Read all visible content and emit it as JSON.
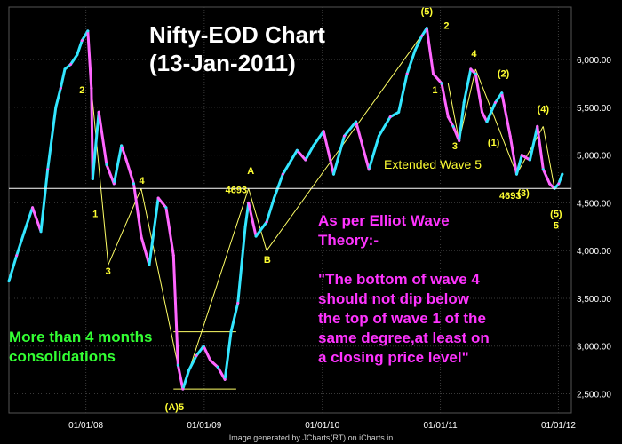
{
  "chart_data": {
    "type": "line",
    "title": "Nifty-EOD Chart",
    "subtitle": "(13-Jan-2011)",
    "ylim": [
      2300,
      6550
    ],
    "y_ticks": [
      "6,000.00",
      "5,500.00",
      "5,000.00",
      "4,500.00",
      "4,000.00",
      "3,500.00",
      "3,000.00",
      "2,500.00"
    ],
    "y_tick_values": [
      6000,
      5500,
      5000,
      4500,
      4000,
      3500,
      3000,
      2500
    ],
    "x_ticks": [
      "01/01/08",
      "01/01/09",
      "01/01/10",
      "01/01/11",
      "01/01/12"
    ],
    "x_tick_dates": [
      "2008-01-01",
      "2009-01-01",
      "2010-01-01",
      "2011-01-01",
      "2012-01-01"
    ],
    "xlim": [
      "2007-05-08",
      "2012-02-10"
    ],
    "series": [
      {
        "x": [
          "2007-05-08",
          "2007-06-01",
          "2007-06-25",
          "2007-07-20",
          "2007-08-15",
          "2007-09-05",
          "2007-09-30",
          "2007-10-15",
          "2007-10-28",
          "2007-11-15",
          "2007-12-05",
          "2007-12-20",
          "2008-01-07",
          "2008-01-18",
          "2008-01-22",
          "2008-02-10",
          "2008-03-05",
          "2008-03-28",
          "2008-04-20",
          "2008-05-05",
          "2008-05-28",
          "2008-06-20",
          "2008-07-15",
          "2008-08-12",
          "2008-09-05",
          "2008-09-28",
          "2008-10-12",
          "2008-10-27",
          "2008-11-15",
          "2008-12-08",
          "2008-12-30",
          "2009-01-20",
          "2009-02-12",
          "2009-03-06",
          "2009-03-25",
          "2009-04-15",
          "2009-05-08",
          "2009-05-18",
          "2009-06-10",
          "2009-07-13",
          "2009-08-05",
          "2009-09-01",
          "2009-10-15",
          "2009-11-10",
          "2009-12-05",
          "2010-01-05",
          "2010-02-05",
          "2010-03-10",
          "2010-04-15",
          "2010-05-25",
          "2010-06-25",
          "2010-07-30",
          "2010-08-25",
          "2010-09-20",
          "2010-10-15",
          "2010-11-05",
          "2010-11-20",
          "2010-12-10",
          "2011-01-05",
          "2011-01-25",
          "2011-02-10",
          "2011-02-28",
          "2011-03-15",
          "2011-04-05",
          "2011-04-20",
          "2011-05-10",
          "2011-05-25",
          "2011-06-20",
          "2011-07-10",
          "2011-08-05",
          "2011-08-25",
          "2011-09-10",
          "2011-10-05",
          "2011-10-28",
          "2011-11-15",
          "2011-12-05",
          "2011-12-20",
          "2012-01-02",
          "2012-01-13"
        ],
        "values": [
          3680,
          3950,
          4200,
          4450,
          4200,
          4850,
          5500,
          5700,
          5900,
          5950,
          6050,
          6200,
          6300,
          5700,
          4750,
          5450,
          4900,
          4700,
          5100,
          4950,
          4700,
          4150,
          3850,
          4550,
          4450,
          3950,
          2800,
          2550,
          2750,
          2900,
          3000,
          2850,
          2780,
          2650,
          3150,
          3450,
          4250,
          4500,
          4150,
          4300,
          4550,
          4800,
          5050,
          4950,
          5100,
          5250,
          4800,
          5200,
          5350,
          4850,
          5200,
          5400,
          5450,
          5850,
          6100,
          6250,
          6330,
          5850,
          5750,
          5400,
          5300,
          5150,
          5550,
          5900,
          5850,
          5450,
          5350,
          5550,
          5650,
          5200,
          4800,
          5000,
          4950,
          5300,
          4850,
          4700,
          4650,
          4700,
          4800
        ]
      }
    ],
    "reference_lines": [
      {
        "label": "Extended Wave 5",
        "y": 4650,
        "kind": "horizontal"
      }
    ],
    "wave_labels": [
      {
        "text": "2",
        "x": "2007-12-20",
        "y": 5650
      },
      {
        "text": "1",
        "x": "2008-01-30",
        "y": 4350
      },
      {
        "text": "4",
        "x": "2008-06-22",
        "y": 4700
      },
      {
        "text": "3",
        "x": "2008-03-10",
        "y": 3750
      },
      {
        "text": "A",
        "x": "2009-05-25",
        "y": 4800
      },
      {
        "text": "4693",
        "x": "2009-04-10",
        "y": 4600
      },
      {
        "text": "B",
        "x": "2009-07-15",
        "y": 3870
      },
      {
        "text": "(5)",
        "x": "2010-11-20",
        "y": 6470
      },
      {
        "text": "2",
        "x": "2011-01-20",
        "y": 6320
      },
      {
        "text": "1",
        "x": "2010-12-15",
        "y": 5650
      },
      {
        "text": "3",
        "x": "2011-02-15",
        "y": 5060
      },
      {
        "text": "4",
        "x": "2011-04-15",
        "y": 6030
      },
      {
        "text": "(2)",
        "x": "2011-07-15",
        "y": 5820
      },
      {
        "text": "(1)",
        "x": "2011-06-15",
        "y": 5100
      },
      {
        "text": "(4)",
        "x": "2011-11-15",
        "y": 5450
      },
      {
        "text": "(3)",
        "x": "2011-09-15",
        "y": 4570
      },
      {
        "text": "4693",
        "x": "2011-08-05",
        "y": 4540
      },
      {
        "text": "(5)",
        "x": "2011-12-25",
        "y": 4350
      },
      {
        "text": "5",
        "x": "2011-12-25",
        "y": 4230
      },
      {
        "text": "(A)5",
        "x": "2008-10-01",
        "y": 2330
      }
    ]
  },
  "annotations": {
    "title_line1": "Nifty-EOD Chart",
    "title_line2": "(13-Jan-2011)",
    "extended_wave": "Extended Wave 5",
    "elliot_lines": [
      "As per Elliot Wave",
      "Theory:-",
      "",
      "\"The bottom of wave 4",
      "should not dip below",
      "the top of wave 1 of the",
      "same degree,at least on",
      "a closing price level\""
    ],
    "consolidation_lines": [
      "More than 4 months",
      "consolidations"
    ]
  },
  "footer": "Image generated by JCharts(RT) on iCharts.in",
  "colors": {
    "background": "#000000",
    "grid": "#3a3a3a",
    "price_up": "#33e6ff",
    "price_down": "#ff66ff",
    "trend_lines": "#ffff66",
    "reference_line": "#ffffff",
    "wave_labels": "#ffff33"
  }
}
